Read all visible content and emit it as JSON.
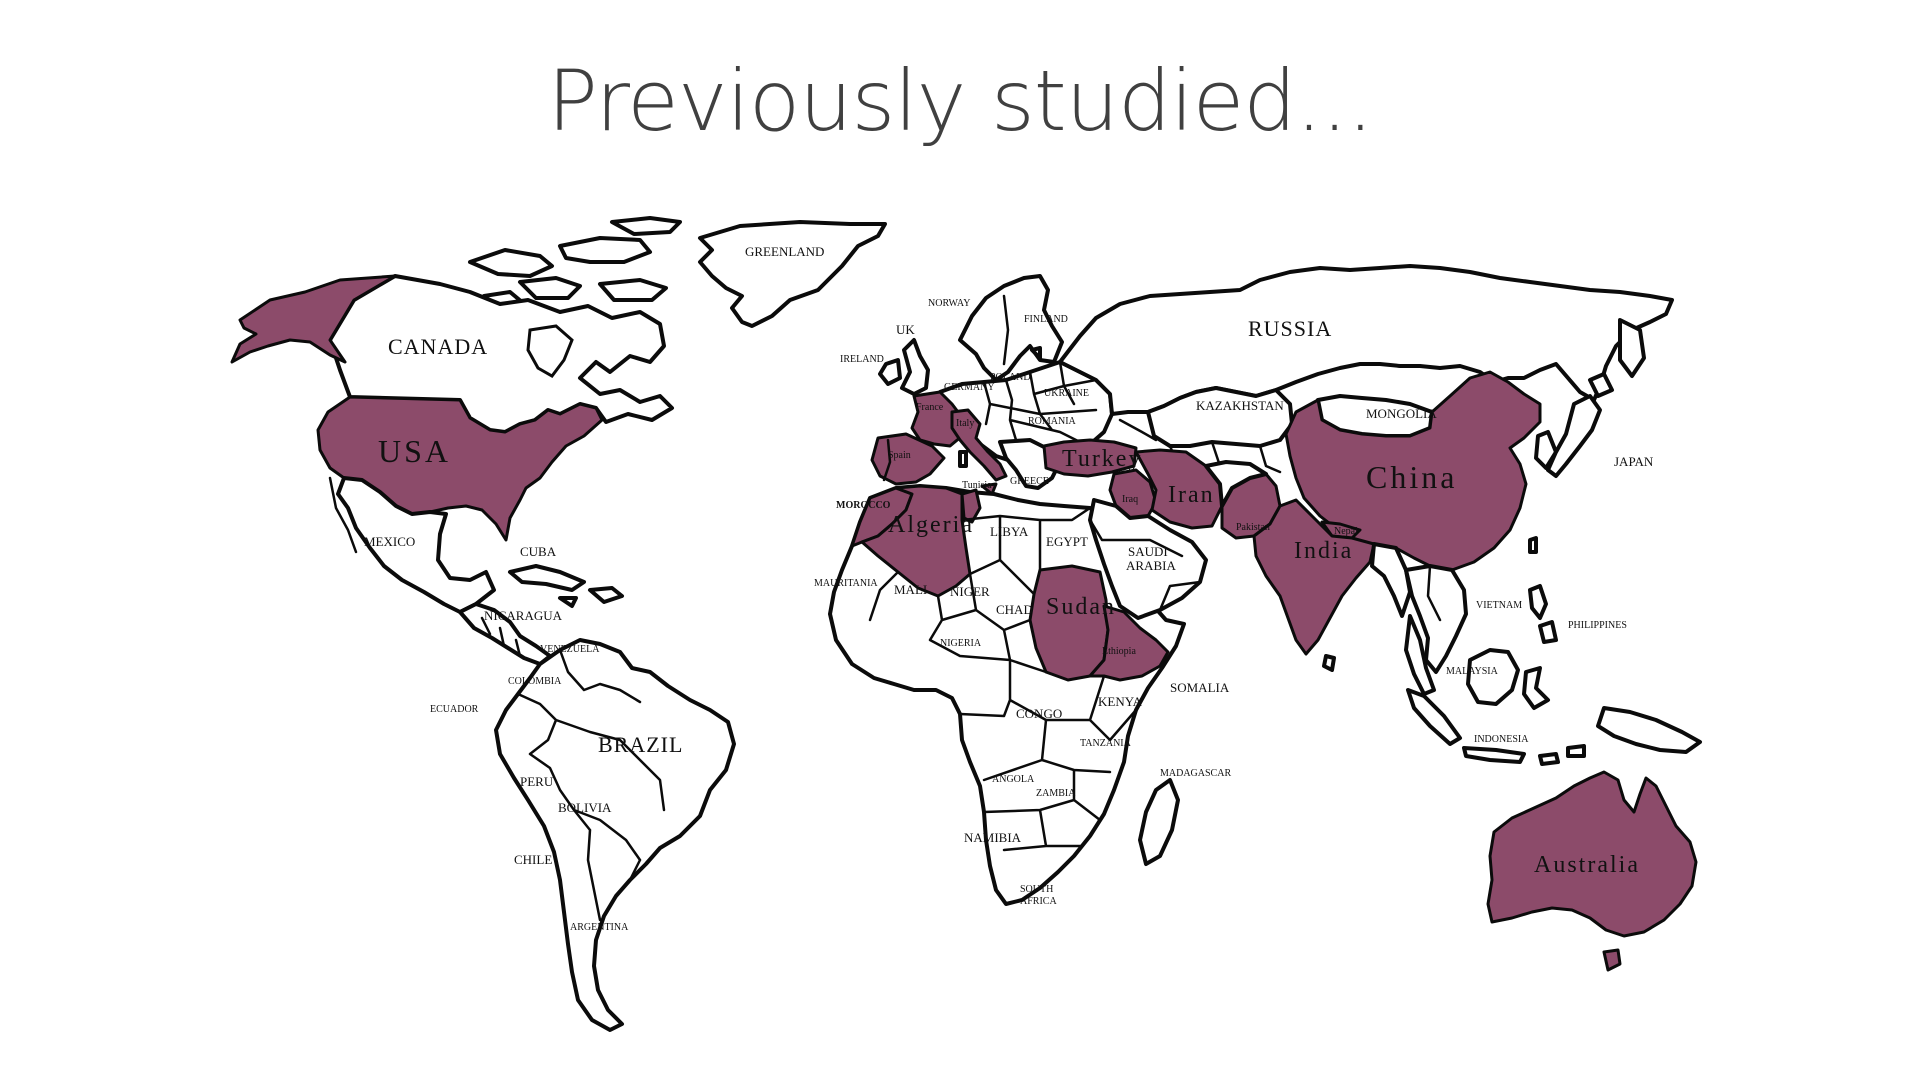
{
  "title": "Previously studied...",
  "studied_fill": "#8c4b6a",
  "highlighted_countries": [
    "USA",
    "China",
    "Australia",
    "Algeria",
    "Sudan",
    "Iran",
    "India",
    "Turkey",
    "France",
    "Spain",
    "Italy",
    "Tunisia",
    "Morocco",
    "Iraq",
    "Pakistan",
    "Nepal",
    "Ethiopia"
  ],
  "labels": {
    "greenland": "GREENLAND",
    "canada": "CANADA",
    "usa": "USA",
    "mexico": "MEXICO",
    "cuba": "CUBA",
    "nicaragua": "NICARAGUA",
    "venezuela": "VENEZUELA",
    "colombia": "COLOMBIA",
    "ecuador": "ECUADOR",
    "brazil": "BRAZIL",
    "peru": "PERU",
    "bolivia": "BOLIVIA",
    "chile": "CHILE",
    "argentina": "ARGENTINA",
    "norway": "NORWAY",
    "uk": "UK",
    "ireland": "IRELAND",
    "finland": "FINLAND",
    "poland": "POLAND",
    "germany": "GERMANY",
    "ukraine": "UKRAINE",
    "france": "France",
    "italy": "Italy",
    "romania": "ROMANIA",
    "spain": "Spain",
    "turkey": "Turkey",
    "greece": "GREECE",
    "tunisia": "Tunisia",
    "morocco": "MOROCCO",
    "algeria": "Algeria",
    "libya": "LIBYA",
    "egypt": "EGYPT",
    "mauritania": "MAURITANIA",
    "mali": "MALI",
    "niger": "NIGER",
    "chad": "CHAD",
    "sudan": "Sudan",
    "nigeria": "NIGERIA",
    "ethiopia": "Ethiopia",
    "somalia": "SOMALIA",
    "kenya": "KENYA",
    "congo": "CONGO",
    "tanzania": "TANZANIA",
    "angola": "ANGOLA",
    "zambia": "ZAMBIA",
    "namibia": "NAMIBIA",
    "south_africa_1": "SOUTH",
    "south_africa_2": "AFRICA",
    "madagascar": "MADAGASCAR",
    "russia": "RUSSIA",
    "kazakhstan": "KAZAKHSTAN",
    "mongolia": "MONGOLIA",
    "china": "China",
    "iraq": "Iraq",
    "iran": "Iran",
    "saudi_1": "SAUDI",
    "saudi_2": "ARABIA",
    "pakistan": "Pakistan",
    "nepal": "Nepal",
    "india": "India",
    "japan": "JAPAN",
    "vietnam": "VIETNAM",
    "philippines": "PHILIPPINES",
    "malaysia": "MALAYSIA",
    "indonesia": "INDONESIA",
    "australia": "Australia"
  }
}
